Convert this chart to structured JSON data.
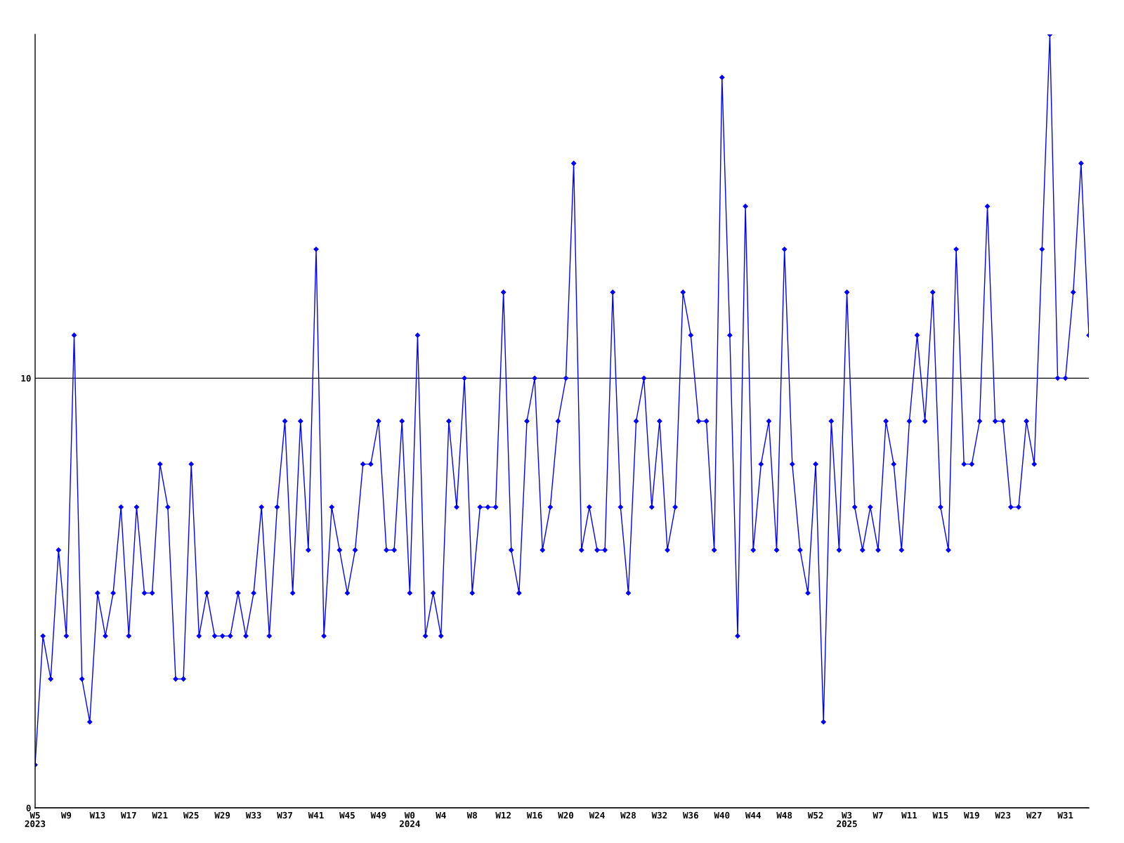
{
  "chart_data": {
    "type": "line",
    "categories": [
      "W5\n2023",
      null,
      null,
      null,
      "W9",
      null,
      null,
      null,
      "W13",
      null,
      null,
      null,
      "W17",
      null,
      null,
      null,
      "W21",
      null,
      null,
      null,
      "W25",
      null,
      null,
      null,
      "W29",
      null,
      null,
      null,
      "W33",
      null,
      null,
      null,
      "W37",
      null,
      null,
      null,
      "W41",
      null,
      null,
      null,
      "W45",
      null,
      null,
      null,
      "W49",
      null,
      null,
      null,
      "W0\n2024",
      null,
      null,
      null,
      "W4",
      null,
      null,
      null,
      "W8",
      null,
      null,
      null,
      "W12",
      null,
      null,
      null,
      "W16",
      null,
      null,
      null,
      "W20",
      null,
      null,
      null,
      "W24",
      null,
      null,
      null,
      "W28",
      null,
      null,
      null,
      "W32",
      null,
      null,
      null,
      "W36",
      null,
      null,
      null,
      "W40",
      null,
      null,
      null,
      "W44",
      null,
      null,
      null,
      "W48",
      null,
      null,
      null,
      "W52",
      null,
      null,
      null,
      "W3\n2025",
      null,
      null,
      null,
      "W7",
      null,
      null,
      null,
      "W11",
      null,
      null,
      null,
      "W15",
      null,
      null,
      null,
      "W19",
      null,
      null,
      null,
      "W23",
      null,
      null,
      null,
      "W27",
      null,
      null,
      null,
      "W31",
      null,
      null,
      null
    ],
    "series": [
      {
        "color": "#0000ff",
        "values": [
          1,
          4,
          3,
          6,
          4,
          11,
          3,
          2,
          5,
          4,
          5,
          7,
          4,
          7,
          5,
          5,
          8,
          7,
          3,
          3,
          8,
          4,
          5,
          4,
          4,
          4,
          5,
          4,
          5,
          7,
          4,
          7,
          9,
          5,
          9,
          6,
          13,
          4,
          7,
          6,
          5,
          6,
          8,
          8,
          9,
          6,
          6,
          9,
          5,
          11,
          4,
          5,
          4,
          9,
          7,
          10,
          5,
          7,
          7,
          7,
          12,
          6,
          5,
          9,
          10,
          6,
          7,
          9,
          10,
          15,
          6,
          7,
          6,
          6,
          12,
          7,
          5,
          9,
          10,
          7,
          9,
          6,
          7,
          12,
          11,
          9,
          9,
          6,
          17,
          11,
          4,
          14,
          6,
          8,
          9,
          6,
          13,
          8,
          6,
          5,
          8,
          2,
          9,
          6,
          12,
          7,
          6,
          7,
          6,
          9,
          8,
          6,
          9,
          11,
          9,
          12,
          7,
          6,
          13,
          8,
          8,
          9,
          14,
          9,
          9,
          7,
          7,
          9,
          8,
          13,
          18,
          10,
          10,
          12,
          15,
          11
        ]
      }
    ],
    "ylim": [
      0,
      18
    ],
    "yticks": [
      0,
      10
    ],
    "grid": "y",
    "marker": "diamond",
    "line_style": "solid"
  }
}
